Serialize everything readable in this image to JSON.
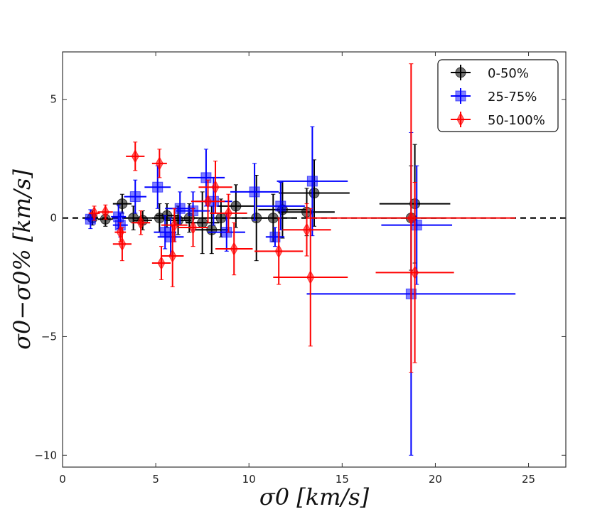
{
  "chart_data": {
    "type": "scatter",
    "xlabel": "σ0 [km/s]",
    "ylabel": "σ0−σ0% [km/s]",
    "xlim": [
      0,
      27
    ],
    "ylim": [
      -10.5,
      7
    ],
    "xticks": [
      0,
      5,
      10,
      15,
      20,
      25
    ],
    "yticks": [
      -10,
      -5,
      0,
      5
    ],
    "grid": false,
    "legend_position": "top-right",
    "reference_line": {
      "y": 0,
      "style": "dashed",
      "color": "#000000"
    },
    "series": [
      {
        "name": "0-50%",
        "color": "#000000",
        "marker": "circle",
        "points": [
          {
            "x": 1.6,
            "y": 0.0,
            "xerr": 0.3,
            "yerr": 0.3
          },
          {
            "x": 2.3,
            "y": -0.05,
            "xerr": 0.4,
            "yerr": 0.3
          },
          {
            "x": 3.2,
            "y": 0.6,
            "xerr": 0.5,
            "yerr": 0.4
          },
          {
            "x": 3.8,
            "y": 0.0,
            "xerr": 0.5,
            "yerr": 0.5
          },
          {
            "x": 4.3,
            "y": -0.1,
            "xerr": 0.5,
            "yerr": 0.4
          },
          {
            "x": 5.2,
            "y": 0.0,
            "xerr": 0.7,
            "yerr": 0.6
          },
          {
            "x": 5.6,
            "y": 0.1,
            "xerr": 0.6,
            "yerr": 0.5
          },
          {
            "x": 6.2,
            "y": -0.1,
            "xerr": 0.7,
            "yerr": 0.6
          },
          {
            "x": 6.8,
            "y": 0.0,
            "xerr": 0.8,
            "yerr": 0.6
          },
          {
            "x": 7.5,
            "y": -0.2,
            "xerr": 0.9,
            "yerr": 1.3
          },
          {
            "x": 8.0,
            "y": -0.5,
            "xerr": 0.9,
            "yerr": 1.0
          },
          {
            "x": 8.5,
            "y": 0.0,
            "xerr": 1.0,
            "yerr": 0.8
          },
          {
            "x": 9.3,
            "y": 0.5,
            "xerr": 1.0,
            "yerr": 0.9
          },
          {
            "x": 10.4,
            "y": 0.0,
            "xerr": 1.2,
            "yerr": 1.8
          },
          {
            "x": 11.3,
            "y": 0.0,
            "xerr": 1.2,
            "yerr": 1.0
          },
          {
            "x": 11.8,
            "y": 0.35,
            "xerr": 1.3,
            "yerr": 1.2
          },
          {
            "x": 13.1,
            "y": 0.25,
            "xerr": 1.5,
            "yerr": 1.0
          },
          {
            "x": 13.5,
            "y": 1.05,
            "xerr": 1.9,
            "yerr": 1.4
          },
          {
            "x": 18.7,
            "y": 0.0,
            "xerr": 1.8,
            "yerr": 2.2
          },
          {
            "x": 18.9,
            "y": 0.6,
            "xerr": 1.9,
            "yerr": 2.5
          }
        ]
      },
      {
        "name": "25-75%",
        "color": "#0000ff",
        "marker": "square",
        "points": [
          {
            "x": 1.5,
            "y": -0.05,
            "xerr": 0.3,
            "yerr": 0.4
          },
          {
            "x": 3.0,
            "y": 0.05,
            "xerr": 0.4,
            "yerr": 0.5
          },
          {
            "x": 3.1,
            "y": -0.3,
            "xerr": 0.4,
            "yerr": 0.5
          },
          {
            "x": 3.9,
            "y": 0.9,
            "xerr": 0.6,
            "yerr": 0.7
          },
          {
            "x": 5.1,
            "y": 1.3,
            "xerr": 0.7,
            "yerr": 0.9
          },
          {
            "x": 5.5,
            "y": -0.6,
            "xerr": 0.6,
            "yerr": 0.7
          },
          {
            "x": 5.8,
            "y": -0.8,
            "xerr": 0.7,
            "yerr": 0.8
          },
          {
            "x": 6.3,
            "y": 0.4,
            "xerr": 0.8,
            "yerr": 0.7
          },
          {
            "x": 7.0,
            "y": 0.3,
            "xerr": 0.9,
            "yerr": 0.8
          },
          {
            "x": 7.7,
            "y": 1.7,
            "xerr": 1.0,
            "yerr": 1.2
          },
          {
            "x": 8.1,
            "y": 0.7,
            "xerr": 1.0,
            "yerr": 1.0
          },
          {
            "x": 8.8,
            "y": -0.6,
            "xerr": 1.0,
            "yerr": 0.8
          },
          {
            "x": 10.3,
            "y": 1.1,
            "xerr": 1.3,
            "yerr": 1.2
          },
          {
            "x": 11.4,
            "y": -0.8,
            "xerr": 0.5,
            "yerr": 0.4
          },
          {
            "x": 11.7,
            "y": 0.5,
            "xerr": 1.3,
            "yerr": 1.0
          },
          {
            "x": 13.4,
            "y": 1.55,
            "xerr": 1.9,
            "yerr": 2.3
          },
          {
            "x": 18.7,
            "y": -3.2,
            "xerr": 5.6,
            "yerr": 6.8
          },
          {
            "x": 19.0,
            "y": -0.3,
            "xerr": 1.9,
            "yerr": 2.5
          }
        ]
      },
      {
        "name": "50-100%",
        "color": "#ff0000",
        "marker": "diamond",
        "points": [
          {
            "x": 1.7,
            "y": 0.2,
            "xerr": 0.3,
            "yerr": 0.3
          },
          {
            "x": 2.3,
            "y": 0.25,
            "xerr": 0.4,
            "yerr": 0.3
          },
          {
            "x": 3.1,
            "y": -0.6,
            "xerr": 0.3,
            "yerr": 0.4
          },
          {
            "x": 3.2,
            "y": -1.1,
            "xerr": 0.5,
            "yerr": 0.7
          },
          {
            "x": 3.9,
            "y": 2.6,
            "xerr": 0.5,
            "yerr": 0.6
          },
          {
            "x": 4.2,
            "y": -0.2,
            "xerr": 0.5,
            "yerr": 0.5
          },
          {
            "x": 5.2,
            "y": 2.3,
            "xerr": 0.4,
            "yerr": 0.6
          },
          {
            "x": 5.3,
            "y": -1.9,
            "xerr": 0.5,
            "yerr": 0.7
          },
          {
            "x": 5.9,
            "y": -1.6,
            "xerr": 0.6,
            "yerr": 1.3
          },
          {
            "x": 6.0,
            "y": -0.3,
            "xerr": 0.7,
            "yerr": 0.7
          },
          {
            "x": 7.0,
            "y": -0.4,
            "xerr": 0.8,
            "yerr": 0.8
          },
          {
            "x": 7.8,
            "y": 0.7,
            "xerr": 0.9,
            "yerr": 0.9
          },
          {
            "x": 8.2,
            "y": 1.3,
            "xerr": 0.9,
            "yerr": 1.1
          },
          {
            "x": 8.9,
            "y": 0.2,
            "xerr": 1.0,
            "yerr": 0.8
          },
          {
            "x": 9.2,
            "y": -1.3,
            "xerr": 1.0,
            "yerr": 1.1
          },
          {
            "x": 11.6,
            "y": -1.4,
            "xerr": 1.3,
            "yerr": 1.4
          },
          {
            "x": 13.1,
            "y": -0.5,
            "xerr": 1.3,
            "yerr": 1.1
          },
          {
            "x": 13.3,
            "y": -2.5,
            "xerr": 2.0,
            "yerr": 2.9
          },
          {
            "x": 18.7,
            "y": 0.0,
            "xerr": 5.6,
            "yerr": 6.5
          },
          {
            "x": 18.9,
            "y": -2.3,
            "xerr": 2.1,
            "yerr": 3.8
          }
        ]
      }
    ]
  }
}
